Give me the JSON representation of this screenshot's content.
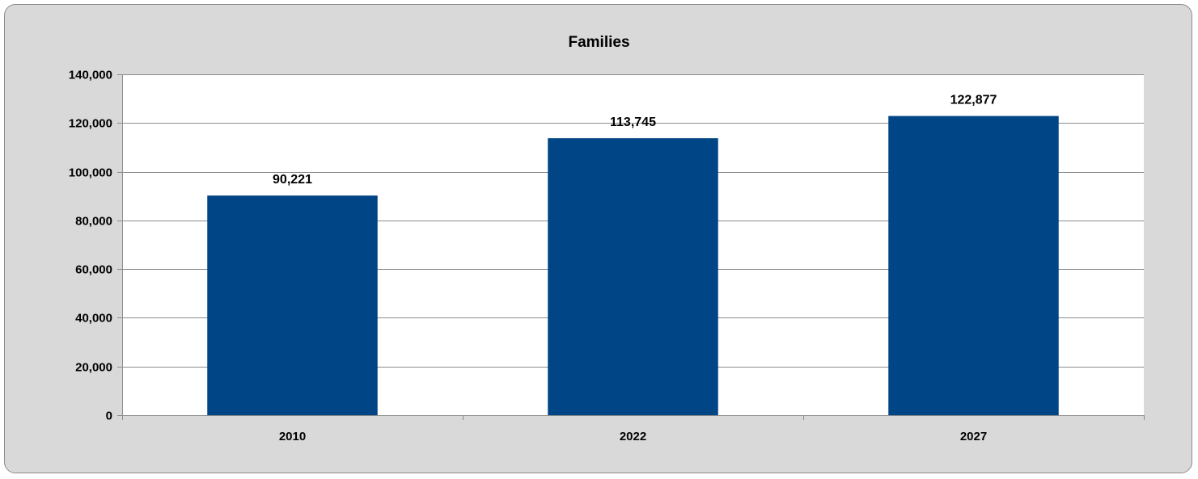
{
  "chart_data": {
    "type": "bar",
    "title": "Families",
    "xlabel": "",
    "ylabel": "",
    "categories": [
      "2010",
      "2022",
      "2027"
    ],
    "values": [
      90221,
      113745,
      122877
    ],
    "value_labels": [
      "90,221",
      "113,745",
      "122,877"
    ],
    "ylim": [
      0,
      140000
    ],
    "y_ticks": [
      0,
      20000,
      40000,
      60000,
      80000,
      100000,
      120000,
      140000
    ],
    "y_tick_labels": [
      "0",
      "20,000",
      "40,000",
      "60,000",
      "80,000",
      "100,000",
      "120,000",
      "140,000"
    ],
    "grid": true,
    "legend": "none",
    "colors": {
      "bar": "#004586",
      "frame_background": "#d9d9d9",
      "plot_background": "#ffffff",
      "gridline": "#8c8c8c",
      "text": "#000000"
    }
  }
}
